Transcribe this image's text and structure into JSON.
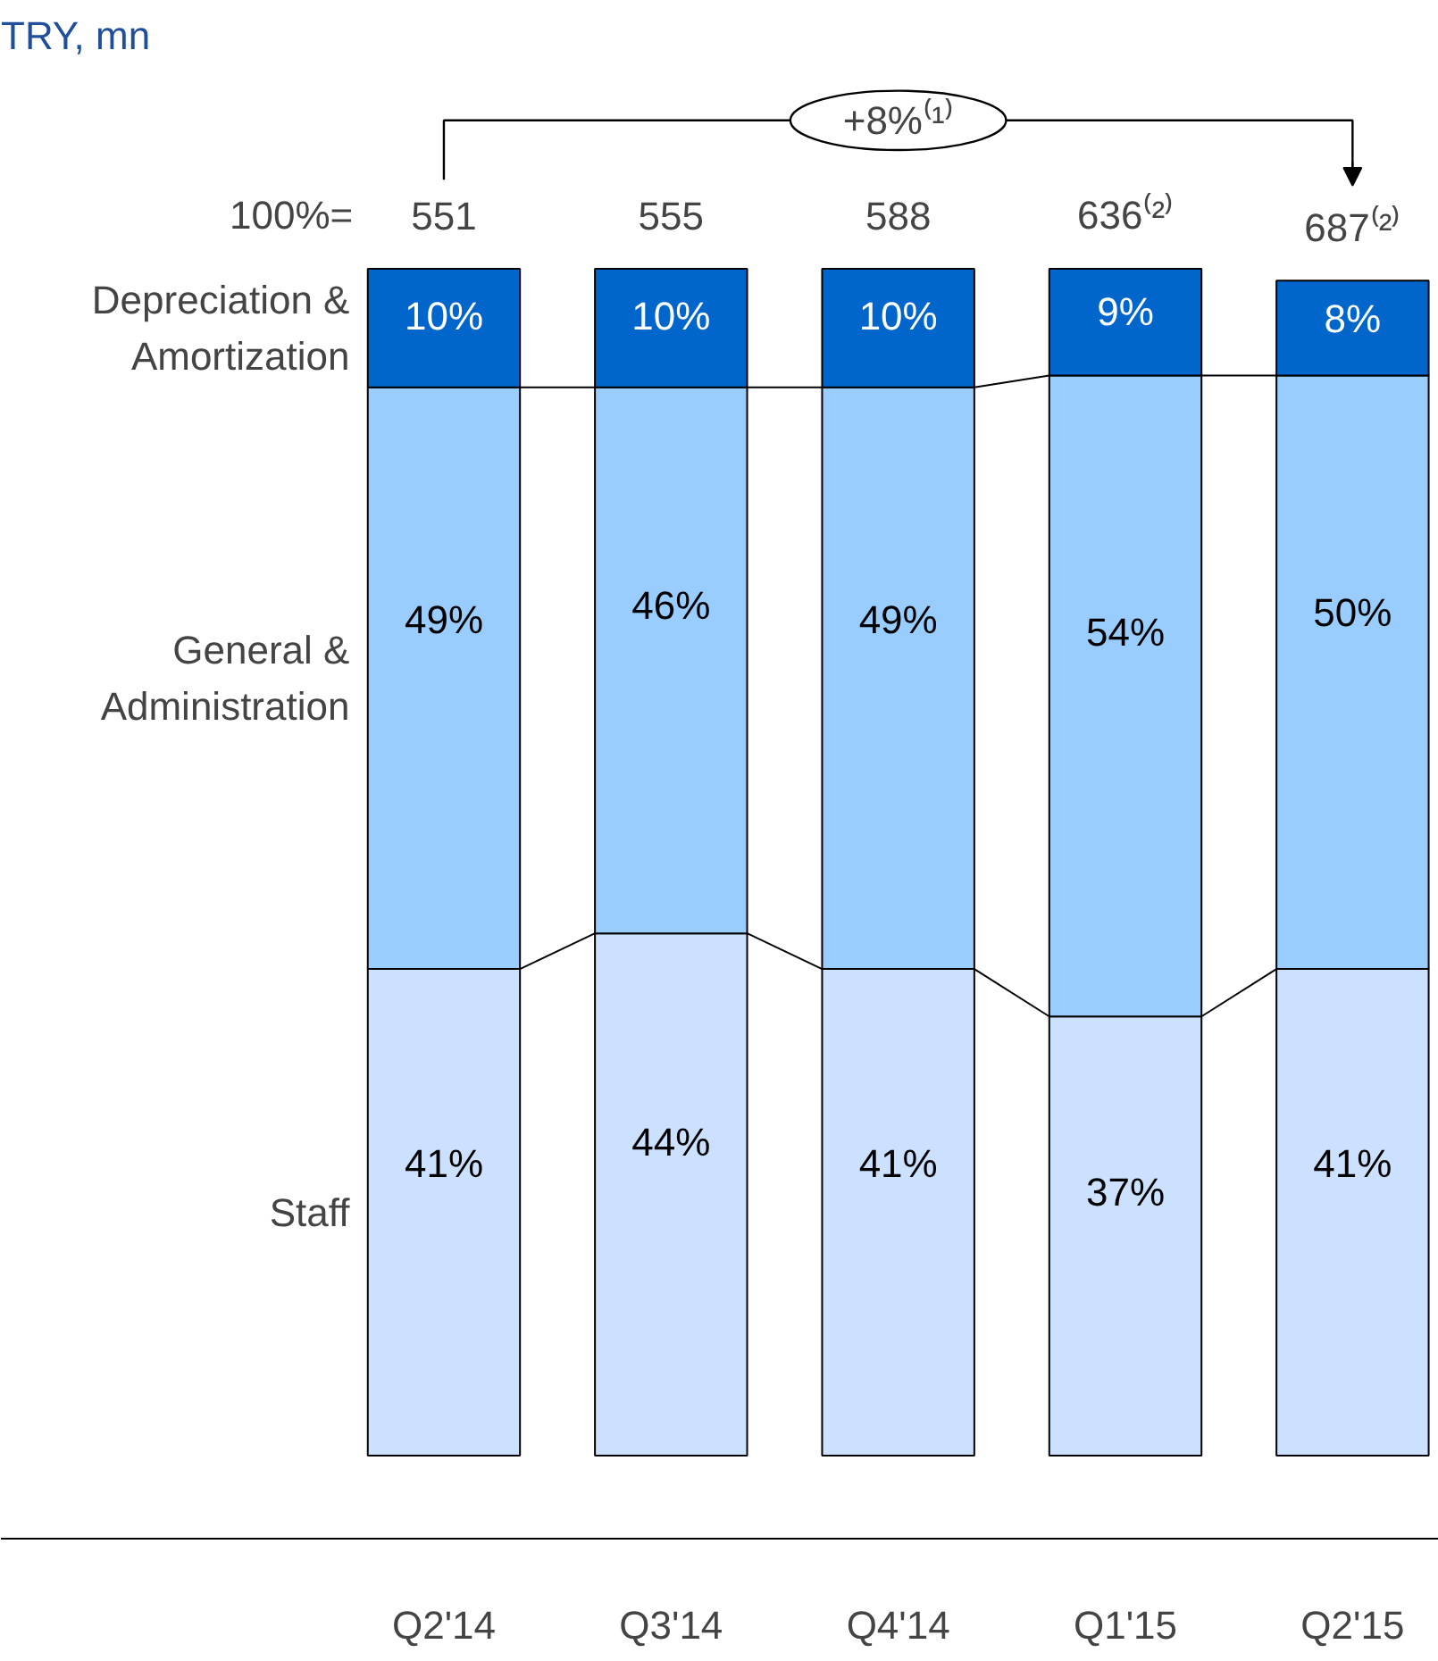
{
  "chart_data": {
    "type": "bar",
    "title": "TRY, mn",
    "stacked": true,
    "categories": [
      "Q2'14",
      "Q3'14",
      "Q4'14",
      "Q1'15",
      "Q2'15"
    ],
    "series": [
      {
        "name": "Staff",
        "color": "#cce0ff",
        "values": [
          41,
          44,
          41,
          37,
          41
        ],
        "value_labels": [
          "41%",
          "44%",
          "41%",
          "37%",
          "41%"
        ]
      },
      {
        "name": "General & Administration",
        "color": "#99ccff",
        "values": [
          49,
          46,
          49,
          54,
          50
        ],
        "value_labels": [
          "49%",
          "46%",
          "49%",
          "54%",
          "50%"
        ]
      },
      {
        "name": "Depreciation & Amortization",
        "color": "#0066cc",
        "values": [
          10,
          10,
          10,
          9,
          8
        ],
        "value_labels": [
          "10%",
          "10%",
          "10%",
          "9%",
          "8%"
        ]
      }
    ],
    "annotations": [
      "100%=",
      "+8%⁽¹⁾",
      {
        "text": "551",
        "x": "Q2'14",
        "y": 100
      },
      {
        "text": "555",
        "x": "Q3'14",
        "y": 100
      },
      {
        "text": "588",
        "x": "Q4'14",
        "y": 100
      },
      {
        "text": "636⁽²⁾",
        "x": "Q1'15",
        "y": 100
      },
      {
        "text": "687⁽²⁾",
        "x": "Q2'15",
        "y": 99
      }
    ],
    "grid": false
  }
}
